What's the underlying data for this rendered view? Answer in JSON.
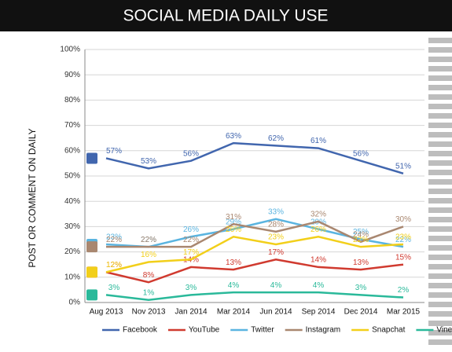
{
  "chart_data": {
    "type": "line",
    "title": "SOCIAL MEDIA DAILY USE",
    "y_label": "POST OR COMMENT ON DAILY",
    "categories": [
      "Aug 2013",
      "Nov 2013",
      "Jan 2014",
      "Mar 2014",
      "Jun 2014",
      "Sep 2014",
      "Dec 2014",
      "Mar 2015"
    ],
    "series": [
      {
        "name": "Facebook",
        "color": "#4166ae",
        "values": [
          57,
          53,
          56,
          63,
          62,
          61,
          56,
          51
        ],
        "value_labels": [
          "57%",
          "53%",
          "56%",
          "63%",
          "62%",
          "61%",
          "56%",
          "51%"
        ]
      },
      {
        "name": "YouTube",
        "color": "#d03a2f",
        "values": [
          12,
          8,
          14,
          13,
          17,
          14,
          13,
          15
        ],
        "value_labels": [
          "12%",
          "8%",
          "14%",
          "13%",
          "17%",
          "14%",
          "13%",
          "15%"
        ]
      },
      {
        "name": "Twitter",
        "color": "#5ab4e0",
        "values": [
          23,
          22,
          26,
          29,
          33,
          29,
          25,
          22
        ],
        "value_labels": [
          "23%",
          "22%",
          "26%",
          "29%",
          "33%",
          "29%",
          "25%",
          "22%"
        ]
      },
      {
        "name": "Instagram",
        "color": "#a98770",
        "values": [
          22,
          22,
          22,
          31,
          28,
          32,
          24,
          30
        ],
        "value_labels": [
          "22%",
          "22%",
          "22%",
          "31%",
          "28%",
          "32%",
          "24%",
          "30%"
        ]
      },
      {
        "name": "Snapchat",
        "color": "#f2cf1a",
        "values": [
          12,
          16,
          17,
          26,
          23,
          26,
          22,
          23
        ],
        "value_labels": [
          "12%",
          "16%",
          "17%",
          "26%",
          "23%",
          "26%",
          "22%",
          "23%"
        ]
      },
      {
        "name": "Vine",
        "color": "#2ab99a",
        "values": [
          3,
          1,
          3,
          4,
          4,
          4,
          3,
          2
        ],
        "value_labels": [
          "3%",
          "1%",
          "3%",
          "4%",
          "4%",
          "4%",
          "3%",
          "2%"
        ]
      }
    ],
    "ylim": [
      0,
      100
    ],
    "yticks": [
      {
        "value": 0,
        "label": "0%"
      },
      {
        "value": 10,
        "label": "10%"
      },
      {
        "value": 20,
        "label": "20%"
      },
      {
        "value": 30,
        "label": "30%"
      },
      {
        "value": 40,
        "label": "40%"
      },
      {
        "value": 50,
        "label": "50%"
      },
      {
        "value": 60,
        "label": "60%"
      },
      {
        "value": 70,
        "label": "70%"
      },
      {
        "value": 80,
        "label": "80%"
      },
      {
        "value": 90,
        "label": "90%"
      },
      {
        "value": 100,
        "label": "100%"
      }
    ],
    "grid": true,
    "legend": "bottom"
  }
}
